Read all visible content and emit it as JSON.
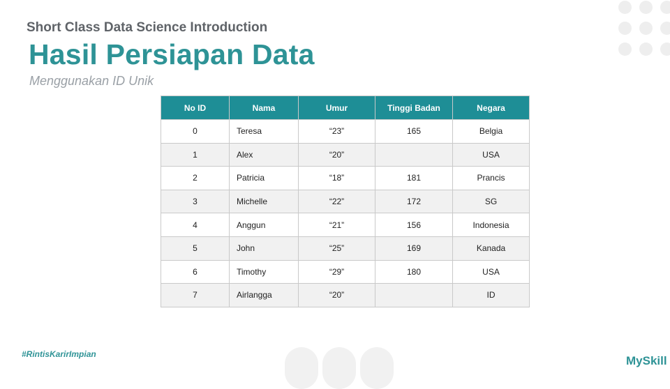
{
  "header": {
    "course": "Short Class Data Science Introduction",
    "title": "Hasil Persiapan Data",
    "subtitle": "Menggunakan ID Unik"
  },
  "table": {
    "columns": [
      "No ID",
      "Nama",
      "Umur",
      "Tinggi Badan",
      "Negara"
    ],
    "rows": [
      [
        "0",
        "Teresa",
        "“23”",
        "165",
        "Belgia"
      ],
      [
        "1",
        "Alex",
        "“20”",
        "",
        "USA"
      ],
      [
        "2",
        "Patricia",
        "“18”",
        "181",
        "Prancis"
      ],
      [
        "3",
        "Michelle",
        "“22”",
        "172",
        "SG"
      ],
      [
        "4",
        "Anggun",
        "“21”",
        "156",
        "Indonesia"
      ],
      [
        "5",
        "John",
        "“25”",
        "169",
        "Kanada"
      ],
      [
        "6",
        "Timothy",
        "“29”",
        "180",
        "USA"
      ],
      [
        "7",
        "Airlangga",
        "“20”",
        "",
        "ID"
      ]
    ]
  },
  "footer": {
    "hashtag": "#RintisKarirImpian",
    "brand": "MySkill"
  },
  "colors": {
    "accent": "#2e9396",
    "header_fill": "#1e8e96"
  }
}
